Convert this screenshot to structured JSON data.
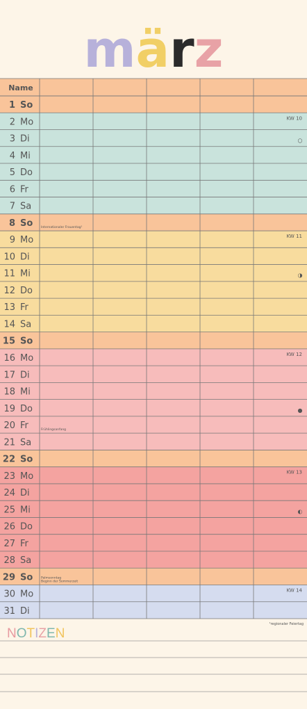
{
  "title": "märz",
  "header": "Name",
  "footnote": "¹regionaler Feiertag",
  "notes_title": "NOTIZEN",
  "title_colors": [
    "#b7b1da",
    "#f1cf66",
    "#2b2b2b",
    "#e8a2a6"
  ],
  "notes_colors": [
    "#e79aa0",
    "#7fb7ad",
    "#f1c45e",
    "#b7b1da",
    "#e8a2a6",
    "#7fb7ad",
    "#f1c45e"
  ],
  "days": [
    {
      "num": "1",
      "name": "So",
      "color": "#f9c49a",
      "bold": true
    },
    {
      "num": "2",
      "name": "Mo",
      "color": "#c9e3dc",
      "kw": "KW 10"
    },
    {
      "num": "3",
      "name": "Di",
      "color": "#c9e3dc",
      "moon": "○"
    },
    {
      "num": "4",
      "name": "Mi",
      "color": "#c9e3dc"
    },
    {
      "num": "5",
      "name": "Do",
      "color": "#c9e3dc"
    },
    {
      "num": "6",
      "name": "Fr",
      "color": "#c9e3dc"
    },
    {
      "num": "7",
      "name": "Sa",
      "color": "#c9e3dc"
    },
    {
      "num": "8",
      "name": "So",
      "color": "#f9c49a",
      "bold": true,
      "note": [
        "Internationaler Frauentag¹"
      ]
    },
    {
      "num": "9",
      "name": "Mo",
      "color": "#f8dc9e",
      "kw": "KW 11"
    },
    {
      "num": "10",
      "name": "Di",
      "color": "#f8dc9e"
    },
    {
      "num": "11",
      "name": "Mi",
      "color": "#f8dc9e",
      "moon": "◑"
    },
    {
      "num": "12",
      "name": "Do",
      "color": "#f8dc9e"
    },
    {
      "num": "13",
      "name": "Fr",
      "color": "#f8dc9e"
    },
    {
      "num": "14",
      "name": "Sa",
      "color": "#f8dc9e"
    },
    {
      "num": "15",
      "name": "So",
      "color": "#f9c49a",
      "bold": true
    },
    {
      "num": "16",
      "name": "Mo",
      "color": "#f7bcbb",
      "kw": "KW 12"
    },
    {
      "num": "17",
      "name": "Di",
      "color": "#f7bcbb"
    },
    {
      "num": "18",
      "name": "Mi",
      "color": "#f7bcbb"
    },
    {
      "num": "19",
      "name": "Do",
      "color": "#f7bcbb",
      "moon": "●"
    },
    {
      "num": "20",
      "name": "Fr",
      "color": "#f7bcbb",
      "note": [
        "Frühlingsanfang"
      ]
    },
    {
      "num": "21",
      "name": "Sa",
      "color": "#f7bcbb"
    },
    {
      "num": "22",
      "name": "So",
      "color": "#f9c49a",
      "bold": true
    },
    {
      "num": "23",
      "name": "Mo",
      "color": "#f4a3a0",
      "kw": "KW 13"
    },
    {
      "num": "24",
      "name": "Di",
      "color": "#f4a3a0"
    },
    {
      "num": "25",
      "name": "Mi",
      "color": "#f4a3a0",
      "moon": "◐"
    },
    {
      "num": "26",
      "name": "Do",
      "color": "#f4a3a0"
    },
    {
      "num": "27",
      "name": "Fr",
      "color": "#f4a3a0"
    },
    {
      "num": "28",
      "name": "Sa",
      "color": "#f4a3a0"
    },
    {
      "num": "29",
      "name": "So",
      "color": "#f9c49a",
      "bold": true,
      "note": [
        "Palmsonntag",
        "Beginn der Sommerzeit"
      ]
    },
    {
      "num": "30",
      "name": "Mo",
      "color": "#d5dcef",
      "kw": "KW 14"
    },
    {
      "num": "31",
      "name": "Di",
      "color": "#d5dcef"
    }
  ]
}
